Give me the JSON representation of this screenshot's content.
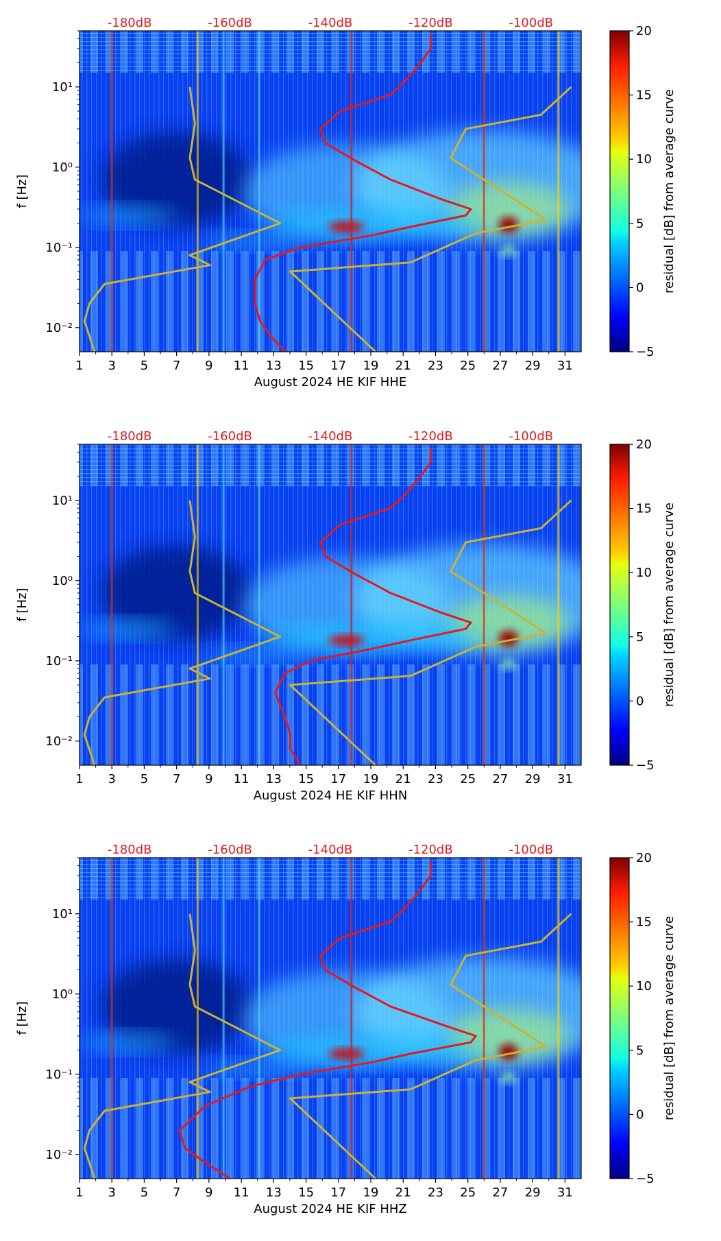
{
  "chart_data": [
    {
      "type": "heatmap",
      "title": "",
      "xlabel": "August 2024 HE KIF  HHE",
      "ylabel": "f [Hz]",
      "x_ticks": [
        "1",
        "3",
        "5",
        "7",
        "9",
        "11",
        "13",
        "15",
        "17",
        "19",
        "21",
        "23",
        "25",
        "27",
        "29",
        "31"
      ],
      "y_ticks": [
        "10⁻²",
        "10⁻¹",
        "10⁰",
        "10¹"
      ],
      "x_range": [
        1,
        32
      ],
      "y_range_hz": [
        0.005,
        50
      ],
      "top_axis_labels": [
        "-180dB",
        "-160dB",
        "-140dB",
        "-120dB",
        "-100dB"
      ],
      "top_axis_range_db": [
        -190,
        -90
      ],
      "colorbar": {
        "label": "residual [dB] from average curve",
        "range": [
          -5,
          20
        ],
        "ticks": [
          "−5",
          "0",
          "5",
          "10",
          "15",
          "20"
        ]
      },
      "series": [
        {
          "name": "average curve",
          "color": "#e31a1c",
          "f": [
            0.005,
            0.008,
            0.012,
            0.02,
            0.04,
            0.07,
            0.1,
            0.14,
            0.18,
            0.25,
            0.3,
            0.4,
            0.7,
            1.2,
            2,
            3,
            5,
            8,
            12,
            20,
            30,
            45
          ],
          "db": [
            -149,
            -152,
            -154,
            -155,
            -155,
            -153,
            -146,
            -132,
            -124,
            -113,
            -112,
            -118,
            -128,
            -135,
            -141,
            -142,
            -138,
            -128,
            -125,
            -122,
            -120,
            -120
          ]
        },
        {
          "name": "noise model low",
          "color": "#c8b432",
          "f": [
            0.005,
            0.012,
            0.02,
            0.035,
            0.06,
            0.08,
            0.2,
            0.7,
            1.3,
            3.5,
            10
          ],
          "db": [
            -187,
            -189,
            -188,
            -185,
            -164,
            -168,
            -150,
            -167,
            -168,
            -167,
            -168
          ]
        },
        {
          "name": "noise model high",
          "color": "#c8b432",
          "f": [
            0.005,
            0.05,
            0.065,
            0.15,
            0.22,
            1.3,
            3,
            4.5,
            10
          ],
          "db": [
            -131,
            -148,
            -124,
            -111,
            -97,
            -116,
            -113,
            -98,
            -92
          ]
        }
      ]
    },
    {
      "type": "heatmap",
      "title": "",
      "xlabel": "August 2024 HE KIF  HHN",
      "ylabel": "f [Hz]",
      "x_ticks": [
        "1",
        "3",
        "5",
        "7",
        "9",
        "11",
        "13",
        "15",
        "17",
        "19",
        "21",
        "23",
        "25",
        "27",
        "29",
        "31"
      ],
      "y_ticks": [
        "10⁻²",
        "10⁻¹",
        "10⁰",
        "10¹"
      ],
      "x_range": [
        1,
        32
      ],
      "y_range_hz": [
        0.005,
        50
      ],
      "top_axis_labels": [
        "-180dB",
        "-160dB",
        "-140dB",
        "-120dB",
        "-100dB"
      ],
      "top_axis_range_db": [
        -190,
        -90
      ],
      "colorbar": {
        "label": "residual [dB] from average curve",
        "range": [
          -5,
          20
        ],
        "ticks": [
          "−5",
          "0",
          "5",
          "10",
          "15",
          "20"
        ]
      },
      "series": [
        {
          "name": "average curve",
          "color": "#e31a1c",
          "f": [
            0.005,
            0.008,
            0.012,
            0.02,
            0.04,
            0.07,
            0.1,
            0.14,
            0.18,
            0.25,
            0.3,
            0.4,
            0.7,
            1.2,
            2,
            3,
            5,
            8,
            12,
            20,
            30,
            45
          ],
          "db": [
            -146,
            -148,
            -148,
            -149,
            -151,
            -149,
            -144,
            -132,
            -124,
            -113,
            -112,
            -118,
            -128,
            -135,
            -141,
            -142,
            -138,
            -128,
            -125,
            -122,
            -120,
            -120
          ]
        },
        {
          "name": "noise model low",
          "color": "#c8b432",
          "f": [
            0.005,
            0.012,
            0.02,
            0.035,
            0.06,
            0.08,
            0.2,
            0.7,
            1.3,
            3.5,
            10
          ],
          "db": [
            -187,
            -189,
            -188,
            -185,
            -164,
            -168,
            -150,
            -167,
            -168,
            -167,
            -168
          ]
        },
        {
          "name": "noise model high",
          "color": "#c8b432",
          "f": [
            0.005,
            0.05,
            0.065,
            0.15,
            0.22,
            1.3,
            3,
            4.5,
            10
          ],
          "db": [
            -131,
            -148,
            -124,
            -111,
            -97,
            -116,
            -113,
            -98,
            -92
          ]
        }
      ]
    },
    {
      "type": "heatmap",
      "title": "",
      "xlabel": "August 2024 HE KIF  HHZ",
      "ylabel": "f [Hz]",
      "x_ticks": [
        "1",
        "3",
        "5",
        "7",
        "9",
        "11",
        "13",
        "15",
        "17",
        "19",
        "21",
        "23",
        "25",
        "27",
        "29",
        "31"
      ],
      "y_ticks": [
        "10⁻²",
        "10⁻¹",
        "10⁰",
        "10¹"
      ],
      "x_range": [
        1,
        32
      ],
      "y_range_hz": [
        0.005,
        50
      ],
      "top_axis_labels": [
        "-180dB",
        "-160dB",
        "-140dB",
        "-120dB",
        "-100dB"
      ],
      "top_axis_range_db": [
        -190,
        -90
      ],
      "colorbar": {
        "label": "residual [dB] from average curve",
        "range": [
          -5,
          20
        ],
        "ticks": [
          "−5",
          "0",
          "5",
          "10",
          "15",
          "20"
        ]
      },
      "series": [
        {
          "name": "average curve",
          "color": "#e31a1c",
          "f": [
            0.005,
            0.008,
            0.012,
            0.02,
            0.04,
            0.07,
            0.1,
            0.14,
            0.18,
            0.25,
            0.3,
            0.4,
            0.7,
            1.2,
            2,
            3,
            5,
            8,
            12,
            20,
            30,
            45
          ],
          "db": [
            -160,
            -165,
            -169,
            -170,
            -165,
            -156,
            -146,
            -132,
            -124,
            -112,
            -111,
            -117,
            -128,
            -135,
            -141,
            -142,
            -138,
            -128,
            -125,
            -122,
            -120,
            -120
          ]
        },
        {
          "name": "noise model low",
          "color": "#c8b432",
          "f": [
            0.005,
            0.012,
            0.02,
            0.035,
            0.06,
            0.08,
            0.2,
            0.7,
            1.3,
            3.5,
            10
          ],
          "db": [
            -187,
            -189,
            -188,
            -185,
            -164,
            -168,
            -150,
            -167,
            -168,
            -167,
            -168
          ]
        },
        {
          "name": "noise model high",
          "color": "#c8b432",
          "f": [
            0.005,
            0.05,
            0.065,
            0.15,
            0.22,
            1.3,
            3,
            4.5,
            10
          ],
          "db": [
            -131,
            -148,
            -124,
            -111,
            -97,
            -116,
            -113,
            -98,
            -92
          ]
        }
      ]
    }
  ]
}
